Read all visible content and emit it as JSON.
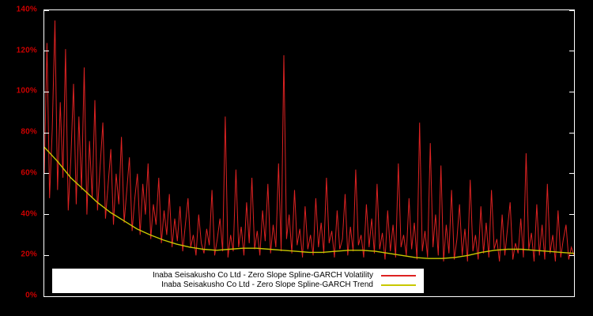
{
  "chart_data": {
    "type": "line",
    "title": "",
    "xlabel": "",
    "ylabel": "",
    "ylim": [
      0,
      140
    ],
    "y_ticks": [
      "0%",
      "20%",
      "40%",
      "60%",
      "80%",
      "100%",
      "120%",
      "140%"
    ],
    "x_tick_labels_visible": false,
    "grid": false,
    "background": "#000000",
    "axis_label_color": "#cc0000",
    "border_color": "#ffffff",
    "legend_position": "bottom-center",
    "legend_background": "#ffffff",
    "series": [
      {
        "name": "Inaba Seisakusho Co Ltd - Zero Slope Spline-GARCH Volatility",
        "color": "#dd2222",
        "values": [
          60,
          124,
          48,
          82,
          135,
          52,
          95,
          58,
          121,
          42,
          68,
          104,
          45,
          88,
          52,
          112,
          40,
          76,
          48,
          96,
          42,
          64,
          85,
          38,
          55,
          72,
          35,
          60,
          45,
          78,
          36,
          52,
          68,
          32,
          48,
          60,
          30,
          55,
          40,
          65,
          28,
          45,
          35,
          58,
          26,
          42,
          30,
          50,
          24,
          38,
          27,
          44,
          22,
          35,
          48,
          24,
          30,
          20,
          40,
          26,
          21,
          33,
          25,
          52,
          20,
          28,
          38,
          22,
          88,
          19,
          30,
          22,
          62,
          24,
          34,
          20,
          46,
          26,
          58,
          23,
          32,
          20,
          42,
          27,
          55,
          21,
          35,
          24,
          65,
          22,
          118,
          28,
          40,
          21,
          52,
          25,
          33,
          19,
          44,
          23,
          30,
          20,
          48,
          24,
          36,
          21,
          58,
          26,
          32,
          19,
          42,
          23,
          28,
          50,
          20,
          34,
          22,
          62,
          25,
          30,
          19,
          45,
          24,
          38,
          21,
          55,
          23,
          31,
          18,
          42,
          22,
          35,
          19,
          65,
          24,
          30,
          20,
          48,
          23,
          36,
          18,
          85,
          22,
          32,
          19,
          75,
          24,
          40,
          20,
          64,
          17,
          35,
          21,
          52,
          18,
          28,
          45,
          20,
          33,
          17,
          57,
          22,
          30,
          18,
          44,
          21,
          36,
          19,
          52,
          23,
          28,
          17,
          40,
          20,
          33,
          46,
          18,
          26,
          21,
          38,
          19,
          70,
          23,
          31,
          17,
          45,
          20,
          35,
          18,
          55,
          21,
          30,
          17,
          42,
          19,
          28,
          35,
          18,
          24,
          20
        ]
      },
      {
        "name": "Inaba Seisakusho Co Ltd - Zero Slope Spline-GARCH Trend",
        "color": "#c8c800",
        "values": [
          73,
          66,
          58,
          52,
          46,
          41,
          37,
          33,
          30,
          27.5,
          25.5,
          24,
          23,
          22.5,
          23,
          23.5,
          23.5,
          23,
          22.5,
          22,
          21.5,
          21.5,
          22,
          22.5,
          22.5,
          22,
          21,
          20,
          19,
          18.5,
          18.5,
          19,
          20,
          21.5,
          22.5,
          23,
          23,
          22.5,
          22,
          21.5,
          21
        ]
      }
    ]
  }
}
